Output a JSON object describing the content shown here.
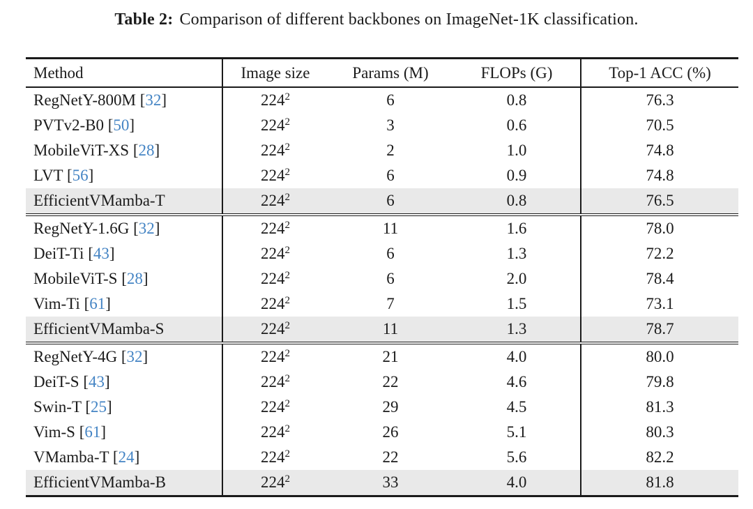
{
  "caption": {
    "label": "Table 2:",
    "text": "Comparison of different backbones on ImageNet-1K classification."
  },
  "colors": {
    "citation_blue": "#4484c4",
    "highlight_gray": "#e9e9e9",
    "rule_black": "#1a1a1a"
  },
  "table": {
    "headers": [
      "Method",
      "Image size",
      "Params (M)",
      "FLOPs (G)",
      "Top-1 ACC (%)"
    ],
    "groups": [
      {
        "rows": [
          {
            "method": "RegNetY-800M",
            "cite": "32",
            "image_size": "224",
            "image_size_sup": "2",
            "params": "6",
            "flops": "0.8",
            "acc": "76.3",
            "highlight": false
          },
          {
            "method": "PVTv2-B0",
            "cite": "50",
            "image_size": "224",
            "image_size_sup": "2",
            "params": "3",
            "flops": "0.6",
            "acc": "70.5",
            "highlight": false
          },
          {
            "method": "MobileViT-XS",
            "cite": "28",
            "image_size": "224",
            "image_size_sup": "2",
            "params": "2",
            "flops": "1.0",
            "acc": "74.8",
            "highlight": false
          },
          {
            "method": "LVT",
            "cite": "56",
            "image_size": "224",
            "image_size_sup": "2",
            "params": "6",
            "flops": "0.9",
            "acc": "74.8",
            "highlight": false
          },
          {
            "method": "EfficientVMamba-T",
            "cite": null,
            "image_size": "224",
            "image_size_sup": "2",
            "params": "6",
            "flops": "0.8",
            "acc": "76.5",
            "highlight": true
          }
        ]
      },
      {
        "rows": [
          {
            "method": "RegNetY-1.6G",
            "cite": "32",
            "image_size": "224",
            "image_size_sup": "2",
            "params": "11",
            "flops": "1.6",
            "acc": "78.0",
            "highlight": false
          },
          {
            "method": "DeiT-Ti",
            "cite": "43",
            "image_size": "224",
            "image_size_sup": "2",
            "params": "6",
            "flops": "1.3",
            "acc": "72.2",
            "highlight": false
          },
          {
            "method": "MobileViT-S",
            "cite": "28",
            "image_size": "224",
            "image_size_sup": "2",
            "params": "6",
            "flops": "2.0",
            "acc": "78.4",
            "highlight": false
          },
          {
            "method": "Vim-Ti",
            "cite": "61",
            "image_size": "224",
            "image_size_sup": "2",
            "params": "7",
            "flops": "1.5",
            "acc": "73.1",
            "highlight": false
          },
          {
            "method": "EfficientVMamba-S",
            "cite": null,
            "image_size": "224",
            "image_size_sup": "2",
            "params": "11",
            "flops": "1.3",
            "acc": "78.7",
            "highlight": true
          }
        ]
      },
      {
        "rows": [
          {
            "method": "RegNetY-4G",
            "cite": "32",
            "image_size": "224",
            "image_size_sup": "2",
            "params": "21",
            "flops": "4.0",
            "acc": "80.0",
            "highlight": false
          },
          {
            "method": "DeiT-S",
            "cite": "43",
            "image_size": "224",
            "image_size_sup": "2",
            "params": "22",
            "flops": "4.6",
            "acc": "79.8",
            "highlight": false
          },
          {
            "method": "Swin-T",
            "cite": "25",
            "image_size": "224",
            "image_size_sup": "2",
            "params": "29",
            "flops": "4.5",
            "acc": "81.3",
            "highlight": false
          },
          {
            "method": "Vim-S",
            "cite": "61",
            "image_size": "224",
            "image_size_sup": "2",
            "params": "26",
            "flops": "5.1",
            "acc": "80.3",
            "highlight": false
          },
          {
            "method": "VMamba-T",
            "cite": "24",
            "image_size": "224",
            "image_size_sup": "2",
            "params": "22",
            "flops": "5.6",
            "acc": "82.2",
            "highlight": false
          },
          {
            "method": "EfficientVMamba-B",
            "cite": null,
            "image_size": "224",
            "image_size_sup": "2",
            "params": "33",
            "flops": "4.0",
            "acc": "81.8",
            "highlight": true
          }
        ]
      }
    ]
  }
}
